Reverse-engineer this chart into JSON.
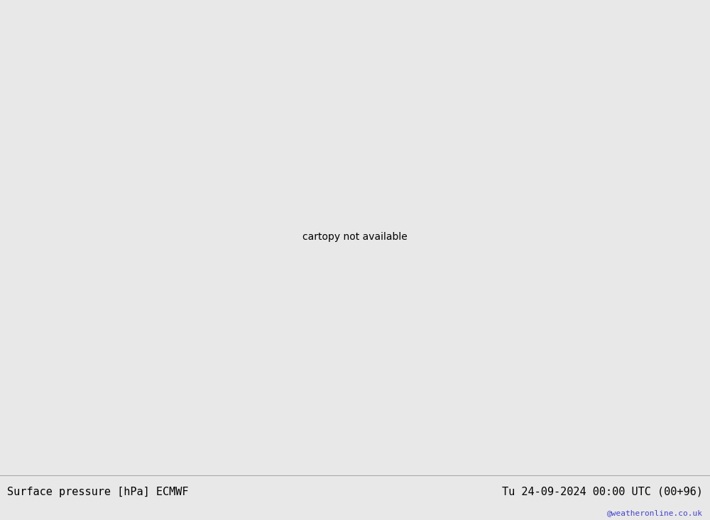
{
  "title_left": "Surface pressure [hPa] ECMWF",
  "title_right": "Tu 24-09-2024 00:00 UTC (00+96)",
  "watermark": "@weatheronline.co.uk",
  "bg_color": "#e8e8e8",
  "land_color": "#c8f0a0",
  "sea_color": "#e0e0e8",
  "coast_color": "#888888",
  "border_color": "#aaaaaa",
  "fig_width": 10.0,
  "fig_height": 7.33,
  "dpi": 100,
  "title_fontsize": 11,
  "watermark_color": "#4444cc",
  "label_fontsize": 8,
  "map_extent": [
    -45,
    50,
    25,
    75
  ],
  "red_color": "#dd0000",
  "blue_color": "#0000bb",
  "black_color": "#000000",
  "isobar_lw": 1.1
}
